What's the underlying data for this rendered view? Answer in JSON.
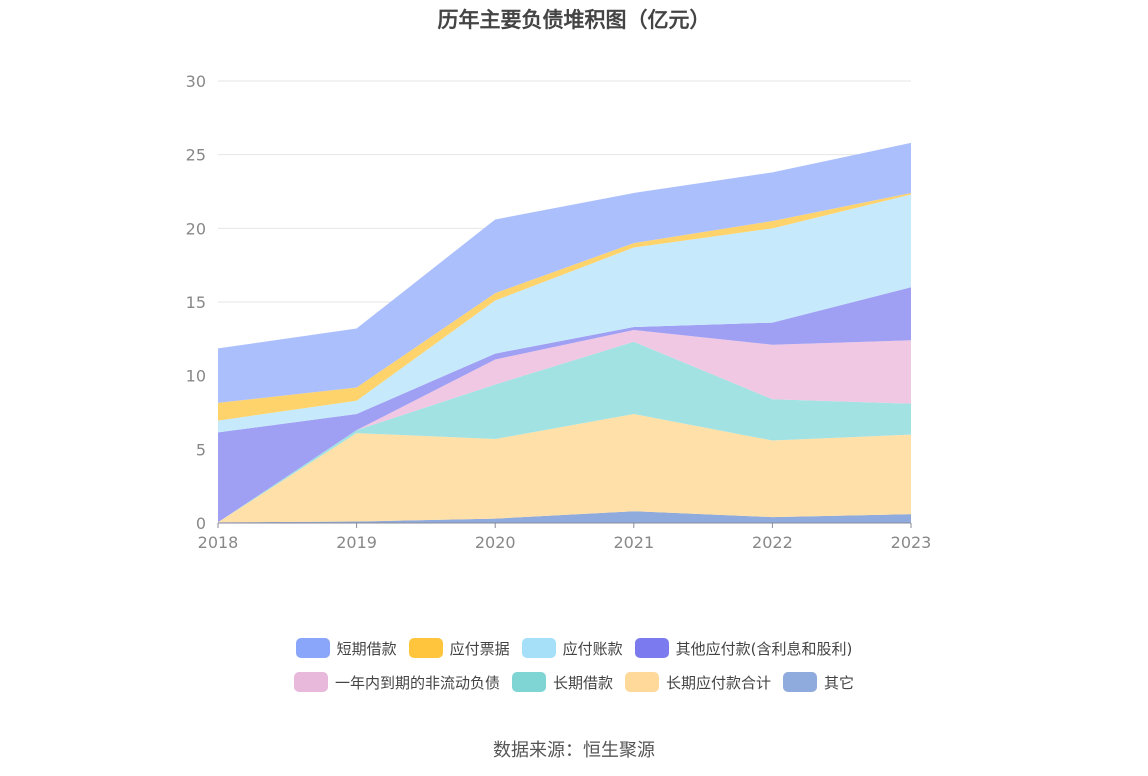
{
  "chart_data": {
    "type": "area",
    "stacked": true,
    "title": "历年主要负债堆积图（亿元）",
    "x": [
      "2018",
      "2019",
      "2020",
      "2021",
      "2022",
      "2023"
    ],
    "ylim": [
      0,
      30
    ],
    "yticks": [
      0,
      5,
      10,
      15,
      20,
      25,
      30
    ],
    "grid": true,
    "legend_position": "bottom",
    "series": [
      {
        "name": "其它",
        "color": "#8faadc",
        "values": [
          0.05,
          0.1,
          0.3,
          0.8,
          0.4,
          0.6
        ]
      },
      {
        "name": "长期应付款合计",
        "color": "#ffe0a8",
        "values": [
          0.0,
          6.0,
          5.4,
          6.6,
          5.2,
          5.4
        ]
      },
      {
        "name": "长期借款",
        "color": "#a3e2e2",
        "values": [
          0.0,
          0.2,
          3.7,
          4.9,
          2.8,
          2.1
        ]
      },
      {
        "name": "一年内到期的非流动负债",
        "color": "#f0c8e3",
        "values": [
          0.0,
          0.0,
          1.7,
          0.8,
          3.7,
          4.3
        ]
      },
      {
        "name": "其他应付款(含利息和股利)",
        "color": "#9f9ff4",
        "values": [
          6.1,
          1.1,
          0.4,
          0.2,
          1.5,
          3.6
        ]
      },
      {
        "name": "应付账款",
        "color": "#c6eafb",
        "values": [
          0.8,
          0.9,
          3.6,
          5.4,
          6.4,
          6.3
        ]
      },
      {
        "name": "应付票据",
        "color": "#ffd36b",
        "values": [
          1.2,
          0.9,
          0.5,
          0.3,
          0.5,
          0.1
        ]
      },
      {
        "name": "短期借款",
        "color": "#abbffc",
        "values": [
          3.7,
          4.0,
          5.0,
          3.4,
          3.3,
          3.4
        ]
      }
    ]
  },
  "legend": {
    "rows": [
      [
        {
          "label": "短期借款",
          "color": "#8aa6fb"
        },
        {
          "label": "应付票据",
          "color": "#ffc53d"
        },
        {
          "label": "应付账款",
          "color": "#a6dff8"
        },
        {
          "label": "其他应付款(含利息和股利)",
          "color": "#7b7bef"
        }
      ],
      [
        {
          "label": "一年内到期的非流动负债",
          "color": "#e8b9da"
        },
        {
          "label": "长期借款",
          "color": "#7fd4d4"
        },
        {
          "label": "长期应付款合计",
          "color": "#ffd99a"
        },
        {
          "label": "其它",
          "color": "#8faadc"
        }
      ]
    ]
  },
  "source": "数据来源：恒生聚源"
}
